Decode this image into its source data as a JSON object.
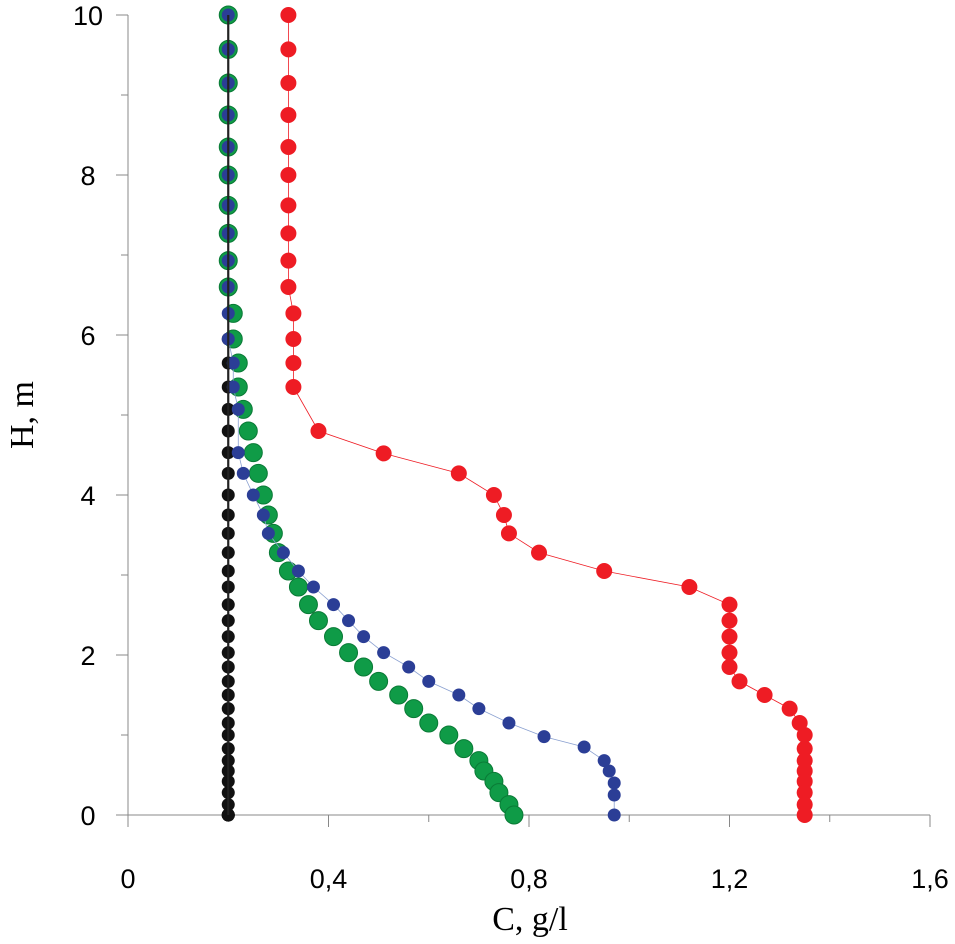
{
  "chart_data": {
    "type": "scatter",
    "title": "",
    "xlabel": "C, g/l",
    "ylabel": "H, m",
    "xlim": [
      0,
      1.6
    ],
    "ylim": [
      0,
      10
    ],
    "xticks": [
      0,
      0.4,
      0.8,
      1.2,
      1.6
    ],
    "xtick_labels": [
      "0",
      "0,4",
      "0,8",
      "1,2",
      "1,6"
    ],
    "yticks": [
      0,
      2,
      4,
      6,
      8,
      10
    ],
    "ytick_labels": [
      "0",
      "2",
      "4",
      "6",
      "8",
      "10"
    ],
    "grid": false,
    "series": [
      {
        "name": "red",
        "color": "#ee1c24",
        "connected": true,
        "x": [
          0.32,
          0.32,
          0.32,
          0.32,
          0.32,
          0.32,
          0.32,
          0.32,
          0.32,
          0.32,
          0.33,
          0.33,
          0.33,
          0.33,
          0.38,
          0.51,
          0.66,
          0.73,
          0.75,
          0.76,
          0.82,
          0.95,
          1.12,
          1.2,
          1.2,
          1.2,
          1.2,
          1.2,
          1.22,
          1.27,
          1.32,
          1.34,
          1.35,
          1.35,
          1.35,
          1.35,
          1.35,
          1.35,
          1.35,
          1.35
        ],
        "y": [
          10,
          9.57,
          9.15,
          8.75,
          8.35,
          8.0,
          7.62,
          7.27,
          6.93,
          6.6,
          6.27,
          5.95,
          5.65,
          5.35,
          4.8,
          4.52,
          4.27,
          4.0,
          3.75,
          3.52,
          3.28,
          3.05,
          2.85,
          2.63,
          2.43,
          2.23,
          2.03,
          1.85,
          1.67,
          1.5,
          1.33,
          1.15,
          1.0,
          0.83,
          0.68,
          0.55,
          0.42,
          0.28,
          0.13,
          0.0
        ]
      },
      {
        "name": "blue",
        "color": "#2b3e96",
        "connected": true,
        "x": [
          0.2,
          0.2,
          0.2,
          0.2,
          0.2,
          0.2,
          0.2,
          0.2,
          0.2,
          0.2,
          0.2,
          0.2,
          0.21,
          0.21,
          0.22,
          0.22,
          0.23,
          0.25,
          0.27,
          0.28,
          0.31,
          0.34,
          0.37,
          0.41,
          0.44,
          0.47,
          0.51,
          0.56,
          0.6,
          0.66,
          0.7,
          0.76,
          0.83,
          0.91,
          0.95,
          0.96,
          0.97,
          0.97,
          0.97
        ],
        "y": [
          10,
          9.57,
          9.15,
          8.75,
          8.35,
          8.0,
          7.62,
          7.27,
          6.93,
          6.6,
          6.27,
          5.95,
          5.65,
          5.35,
          5.07,
          4.53,
          4.27,
          4.0,
          3.75,
          3.52,
          3.28,
          3.05,
          2.85,
          2.63,
          2.43,
          2.23,
          2.03,
          1.85,
          1.67,
          1.5,
          1.33,
          1.15,
          0.98,
          0.85,
          0.68,
          0.55,
          0.4,
          0.25,
          0.0
        ]
      },
      {
        "name": "green",
        "color": "#0f9b47",
        "connected": false,
        "x": [
          0.2,
          0.2,
          0.2,
          0.2,
          0.2,
          0.2,
          0.2,
          0.2,
          0.2,
          0.2,
          0.21,
          0.21,
          0.22,
          0.22,
          0.23,
          0.24,
          0.25,
          0.26,
          0.27,
          0.28,
          0.29,
          0.3,
          0.32,
          0.34,
          0.36,
          0.38,
          0.41,
          0.44,
          0.47,
          0.5,
          0.54,
          0.57,
          0.6,
          0.64,
          0.67,
          0.7,
          0.71,
          0.73,
          0.74,
          0.76,
          0.77
        ],
        "y": [
          10,
          9.57,
          9.15,
          8.75,
          8.35,
          8.0,
          7.62,
          7.27,
          6.93,
          6.6,
          6.27,
          5.95,
          5.65,
          5.35,
          5.07,
          4.8,
          4.53,
          4.27,
          4.0,
          3.75,
          3.52,
          3.28,
          3.05,
          2.85,
          2.63,
          2.43,
          2.23,
          2.03,
          1.85,
          1.67,
          1.5,
          1.33,
          1.15,
          1.0,
          0.83,
          0.68,
          0.55,
          0.42,
          0.28,
          0.13,
          0.0
        ]
      },
      {
        "name": "black",
        "color": "#111111",
        "connected": true,
        "x": [
          0.2,
          0.2,
          0.2,
          0.2,
          0.2,
          0.2,
          0.2,
          0.2,
          0.2,
          0.2,
          0.2,
          0.2,
          0.2,
          0.2,
          0.2,
          0.2,
          0.2,
          0.2,
          0.2,
          0.2,
          0.2,
          0.2,
          0.2,
          0.2,
          0.2,
          0.2,
          0.2,
          0.2,
          0.2,
          0.2,
          0.2,
          0.2,
          0.2,
          0.2,
          0.2,
          0.2,
          0.2,
          0.2,
          0.2,
          0.2,
          0.2,
          0.2,
          0.2,
          0.2
        ],
        "y": [
          10,
          9.57,
          9.15,
          8.75,
          8.35,
          8.0,
          7.62,
          7.27,
          6.93,
          6.6,
          6.27,
          5.95,
          5.65,
          5.35,
          5.07,
          4.8,
          4.53,
          4.27,
          4.0,
          3.75,
          3.52,
          3.28,
          3.05,
          2.85,
          2.63,
          2.43,
          2.23,
          2.03,
          1.85,
          1.67,
          1.5,
          1.33,
          1.15,
          1.0,
          0.83,
          0.68,
          0.55,
          0.42,
          0.28,
          0.13,
          0.0,
          0.0,
          0.0,
          0.0
        ]
      }
    ]
  }
}
